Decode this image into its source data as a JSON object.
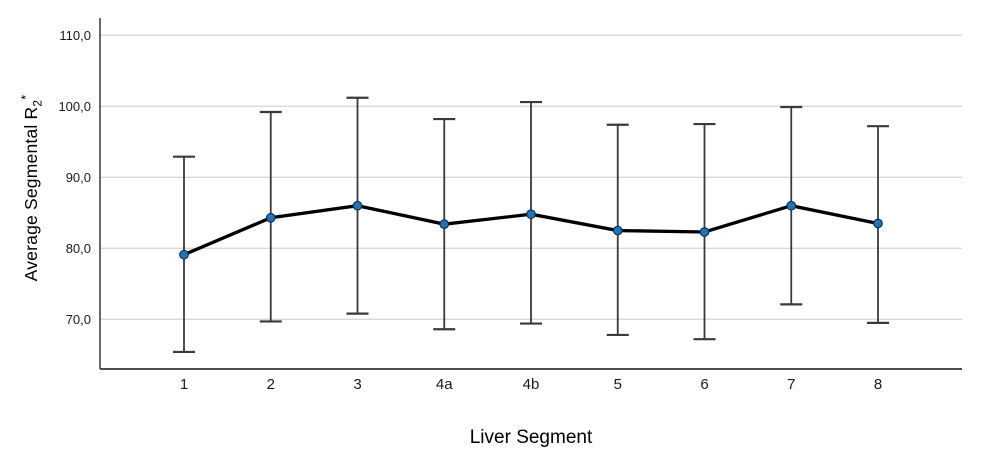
{
  "chart_data": {
    "type": "line",
    "subtype": "means-with-error-bars",
    "title": "",
    "xlabel": "Liver Segment",
    "ylabel": "Average Segmental R2*",
    "ylabel_parts": {
      "prefix": "Average Segmental R",
      "sub": "2",
      "sup": "*"
    },
    "categories": [
      "1",
      "2",
      "3",
      "4a",
      "4b",
      "5",
      "6",
      "7",
      "8"
    ],
    "series": [
      {
        "name": "Average Segmental R2*",
        "means": [
          79.1,
          84.3,
          86.0,
          83.4,
          84.8,
          82.5,
          82.3,
          86.0,
          83.5
        ],
        "error_upper": [
          92.9,
          99.2,
          101.2,
          98.2,
          100.6,
          97.4,
          97.5,
          99.9,
          97.2
        ],
        "error_lower": [
          65.4,
          69.7,
          70.8,
          68.6,
          69.4,
          67.8,
          67.2,
          72.1,
          69.5
        ]
      }
    ],
    "y_ticks": [
      {
        "value": 70,
        "label": "70,0"
      },
      {
        "value": 80,
        "label": "80,0"
      },
      {
        "value": 90,
        "label": "90,0"
      },
      {
        "value": 100,
        "label": "100,0"
      },
      {
        "value": 110,
        "label": "110,0"
      }
    ],
    "ylim": [
      63,
      112.5
    ],
    "grid": "horizontal",
    "legend": "none"
  },
  "colors": {
    "marker_fill": "#1b75bc",
    "marker_stroke": "#0d2c4d",
    "line": "#000000",
    "error_bar": "#3a3a3a",
    "gridline": "#d8d8d8",
    "axis": "#4d4d4d",
    "tick_text": "#1a1a1a"
  }
}
